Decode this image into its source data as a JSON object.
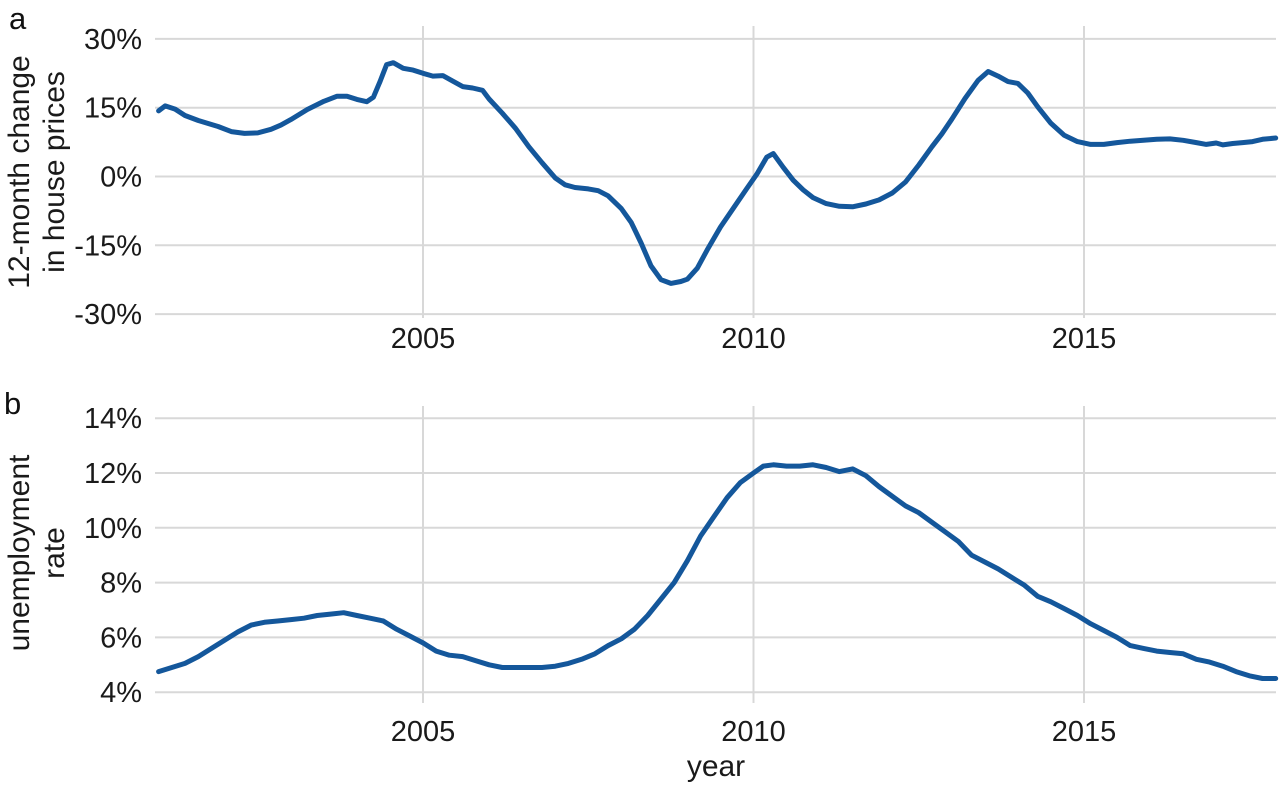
{
  "figure": {
    "background": "#ffffff",
    "line_color": "#14579b",
    "grid_color": "#d8d8d8",
    "text_color": "#1a1a1a",
    "panel_tags": [
      "a",
      "b"
    ],
    "x_axis_title": "year"
  },
  "panels": [
    {
      "tag": "a",
      "y_title_lines": [
        "12-month change",
        "in house prices"
      ],
      "y_tick_labels": [
        "30%",
        "15%",
        "0%",
        "-15%",
        "-30%"
      ],
      "x_tick_labels": [
        "2005",
        "2010",
        "2015"
      ]
    },
    {
      "tag": "b",
      "y_title_lines": [
        "unemployment",
        "rate"
      ],
      "y_tick_labels": [
        "14%",
        "12%",
        "10%",
        "8%",
        "6%",
        "4%"
      ],
      "x_tick_labels": [
        "2005",
        "2010",
        "2015"
      ]
    }
  ],
  "chart_data": [
    {
      "type": "line",
      "title": "",
      "xlabel": "year",
      "ylabel": "12-month change in house prices",
      "x_tick_values": [
        2005,
        2010,
        2015
      ],
      "y_tick_values": [
        30,
        15,
        0,
        -15,
        -30
      ],
      "xlim": [
        2000.95,
        2017.95
      ],
      "ylim": [
        -33,
        33
      ],
      "grid": true,
      "legend": "none",
      "series": [
        {
          "name": "house_price_12mo_change_pct",
          "x": [
            2001.0,
            2001.1,
            2001.25,
            2001.4,
            2001.6,
            2001.9,
            2002.1,
            2002.3,
            2002.5,
            2002.7,
            2002.85,
            2003.0,
            2003.25,
            2003.5,
            2003.7,
            2003.85,
            2004.0,
            2004.15,
            2004.25,
            2004.35,
            2004.45,
            2004.55,
            2004.7,
            2004.85,
            2005.0,
            2005.15,
            2005.3,
            2005.45,
            2005.6,
            2005.75,
            2005.9,
            2006.0,
            2006.2,
            2006.4,
            2006.6,
            2006.8,
            2007.0,
            2007.15,
            2007.3,
            2007.5,
            2007.65,
            2007.8,
            2008.0,
            2008.15,
            2008.3,
            2008.45,
            2008.6,
            2008.75,
            2008.9,
            2009.0,
            2009.15,
            2009.3,
            2009.5,
            2009.7,
            2009.9,
            2010.05,
            2010.2,
            2010.3,
            2010.45,
            2010.6,
            2010.75,
            2010.9,
            2011.1,
            2011.3,
            2011.5,
            2011.7,
            2011.9,
            2012.1,
            2012.3,
            2012.5,
            2012.7,
            2012.85,
            2013.0,
            2013.2,
            2013.4,
            2013.55,
            2013.7,
            2013.85,
            2014.0,
            2014.15,
            2014.3,
            2014.5,
            2014.7,
            2014.9,
            2015.1,
            2015.3,
            2015.5,
            2015.7,
            2015.9,
            2016.1,
            2016.3,
            2016.5,
            2016.7,
            2016.85,
            2017.0,
            2017.1,
            2017.25,
            2017.4,
            2017.55,
            2017.7,
            2017.9
          ],
          "y": [
            14.3,
            15.4,
            14.7,
            13.3,
            12.2,
            10.9,
            9.8,
            9.4,
            9.5,
            10.3,
            11.2,
            12.4,
            14.6,
            16.4,
            17.5,
            17.5,
            16.8,
            16.3,
            17.3,
            20.7,
            24.4,
            24.8,
            23.6,
            23.2,
            22.5,
            21.9,
            22.0,
            20.8,
            19.6,
            19.3,
            18.8,
            16.9,
            13.8,
            10.5,
            6.5,
            3.0,
            -0.3,
            -1.8,
            -2.4,
            -2.7,
            -3.1,
            -4.2,
            -7.0,
            -10.0,
            -14.5,
            -19.5,
            -22.5,
            -23.3,
            -22.9,
            -22.4,
            -20.0,
            -16.0,
            -11.0,
            -6.8,
            -2.6,
            0.5,
            4.2,
            5.0,
            2.0,
            -0.8,
            -2.9,
            -4.6,
            -5.9,
            -6.5,
            -6.6,
            -6.0,
            -5.1,
            -3.6,
            -1.2,
            2.5,
            6.5,
            9.3,
            12.5,
            17.0,
            21.0,
            22.9,
            21.9,
            20.7,
            20.3,
            18.2,
            15.2,
            11.6,
            9.0,
            7.6,
            7.0,
            7.0,
            7.4,
            7.7,
            7.9,
            8.1,
            8.2,
            7.9,
            7.4,
            7.0,
            7.3,
            6.9,
            7.2,
            7.4,
            7.6,
            8.1,
            8.4
          ]
        }
      ]
    },
    {
      "type": "line",
      "title": "",
      "xlabel": "year",
      "ylabel": "unemployment rate",
      "x_tick_values": [
        2005,
        2010,
        2015
      ],
      "y_tick_values": [
        14,
        12,
        10,
        8,
        6,
        4
      ],
      "xlim": [
        2000.95,
        2017.95
      ],
      "ylim": [
        3.6,
        14.5
      ],
      "grid": true,
      "legend": "none",
      "series": [
        {
          "name": "unemployment_rate_pct",
          "x": [
            2001.0,
            2001.2,
            2001.4,
            2001.6,
            2001.8,
            2002.0,
            2002.2,
            2002.4,
            2002.6,
            2002.8,
            2003.0,
            2003.2,
            2003.4,
            2003.6,
            2003.8,
            2004.0,
            2004.2,
            2004.4,
            2004.6,
            2004.8,
            2005.0,
            2005.2,
            2005.4,
            2005.6,
            2005.8,
            2006.0,
            2006.2,
            2006.5,
            2006.8,
            2007.0,
            2007.2,
            2007.4,
            2007.6,
            2007.8,
            2008.0,
            2008.2,
            2008.4,
            2008.6,
            2008.8,
            2009.0,
            2009.2,
            2009.4,
            2009.6,
            2009.8,
            2010.0,
            2010.15,
            2010.3,
            2010.5,
            2010.7,
            2010.9,
            2011.1,
            2011.3,
            2011.5,
            2011.7,
            2011.9,
            2012.1,
            2012.3,
            2012.5,
            2012.7,
            2012.9,
            2013.1,
            2013.3,
            2013.5,
            2013.7,
            2013.9,
            2014.1,
            2014.3,
            2014.5,
            2014.7,
            2014.9,
            2015.1,
            2015.3,
            2015.5,
            2015.7,
            2015.9,
            2016.1,
            2016.3,
            2016.5,
            2016.7,
            2016.9,
            2017.1,
            2017.3,
            2017.5,
            2017.7,
            2017.9
          ],
          "y": [
            4.75,
            4.9,
            5.05,
            5.3,
            5.6,
            5.9,
            6.2,
            6.45,
            6.55,
            6.6,
            6.65,
            6.7,
            6.8,
            6.85,
            6.9,
            6.8,
            6.7,
            6.6,
            6.3,
            6.05,
            5.8,
            5.5,
            5.35,
            5.3,
            5.15,
            5.0,
            4.9,
            4.9,
            4.9,
            4.95,
            5.05,
            5.2,
            5.4,
            5.7,
            5.95,
            6.3,
            6.8,
            7.4,
            8.0,
            8.8,
            9.7,
            10.4,
            11.1,
            11.65,
            12.0,
            12.25,
            12.3,
            12.25,
            12.25,
            12.3,
            12.2,
            12.05,
            12.15,
            11.9,
            11.5,
            11.15,
            10.8,
            10.55,
            10.2,
            9.85,
            9.5,
            9.0,
            8.75,
            8.5,
            8.2,
            7.9,
            7.5,
            7.3,
            7.05,
            6.8,
            6.5,
            6.25,
            6.0,
            5.7,
            5.6,
            5.5,
            5.45,
            5.4,
            5.2,
            5.1,
            4.95,
            4.75,
            4.6,
            4.5,
            4.5
          ]
        }
      ]
    }
  ]
}
